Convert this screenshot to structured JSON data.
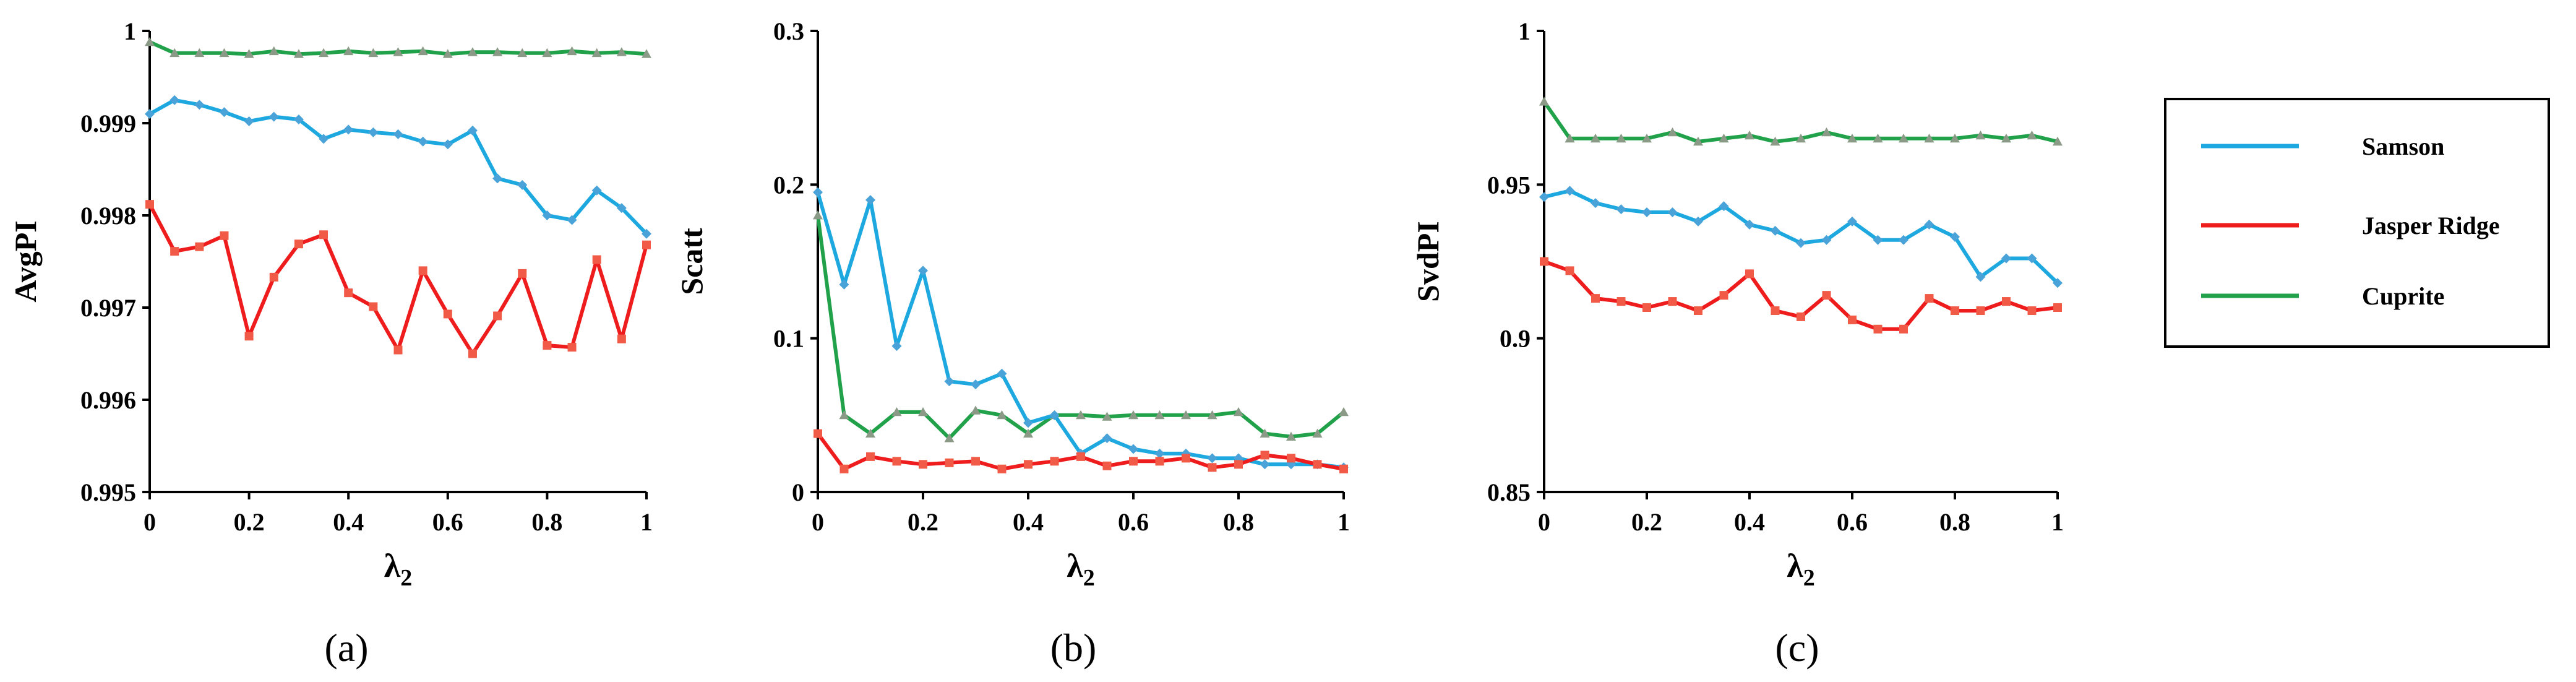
{
  "chart_data": [
    {
      "type": "line",
      "panel": "a",
      "caption": "(a)",
      "ylabel": "AvgPI",
      "xlabel": "λ",
      "xlabel_sub": "2",
      "xlim": [
        0,
        1
      ],
      "ylim": [
        0.995,
        1
      ],
      "xticks": [
        0,
        0.2,
        0.4,
        0.6,
        0.8,
        1
      ],
      "xtick_labels": [
        "0",
        "0.2",
        "0.4",
        "0.6",
        "0.8",
        "1"
      ],
      "yticks": [
        0.995,
        0.996,
        0.997,
        0.998,
        0.999,
        1
      ],
      "ytick_labels": [
        "0.995",
        "0.996",
        "0.997",
        "0.998",
        "0.999",
        "1"
      ],
      "x": [
        0,
        0.05,
        0.1,
        0.15,
        0.2,
        0.25,
        0.3,
        0.35,
        0.4,
        0.45,
        0.5,
        0.55,
        0.6,
        0.65,
        0.7,
        0.75,
        0.8,
        0.85,
        0.9,
        0.95,
        1
      ],
      "series": [
        {
          "name": "Samson",
          "values": [
            0.9991,
            0.99925,
            0.9992,
            0.99912,
            0.99902,
            0.99907,
            0.99904,
            0.99883,
            0.99893,
            0.9989,
            0.99888,
            0.9988,
            0.99877,
            0.99892,
            0.9984,
            0.99833,
            0.998,
            0.99795,
            0.99827,
            0.99808,
            0.9978
          ]
        },
        {
          "name": "Jasper Ridge",
          "values": [
            0.99812,
            0.99761,
            0.99766,
            0.99778,
            0.99669,
            0.99733,
            0.99769,
            0.99779,
            0.99716,
            0.99701,
            0.99654,
            0.9974,
            0.99693,
            0.9965,
            0.99691,
            0.99737,
            0.99659,
            0.99657,
            0.99752,
            0.99666,
            0.99768
          ]
        },
        {
          "name": "Cuprite",
          "values": [
            0.99988,
            0.99976,
            0.99976,
            0.99976,
            0.99975,
            0.99978,
            0.99975,
            0.99976,
            0.99978,
            0.99976,
            0.99977,
            0.99978,
            0.99975,
            0.99977,
            0.99977,
            0.99976,
            0.99976,
            0.99978,
            0.99976,
            0.99977,
            0.99975
          ]
        }
      ]
    },
    {
      "type": "line",
      "panel": "b",
      "caption": "(b)",
      "ylabel": "Scatt",
      "xlabel": "λ",
      "xlabel_sub": "2",
      "xlim": [
        0,
        1
      ],
      "ylim": [
        0,
        0.3
      ],
      "xticks": [
        0,
        0.2,
        0.4,
        0.6,
        0.8,
        1
      ],
      "xtick_labels": [
        "0",
        "0.2",
        "0.4",
        "0.6",
        "0.8",
        "1"
      ],
      "yticks": [
        0,
        0.1,
        0.2,
        0.3
      ],
      "ytick_labels": [
        "0",
        "0.1",
        "0.2",
        "0.3"
      ],
      "x": [
        0,
        0.05,
        0.1,
        0.15,
        0.2,
        0.25,
        0.3,
        0.35,
        0.4,
        0.45,
        0.5,
        0.55,
        0.6,
        0.65,
        0.7,
        0.75,
        0.8,
        0.85,
        0.9,
        0.95,
        1
      ],
      "series": [
        {
          "name": "Samson",
          "values": [
            0.195,
            0.135,
            0.19,
            0.095,
            0.144,
            0.072,
            0.07,
            0.077,
            0.045,
            0.05,
            0.025,
            0.035,
            0.028,
            0.025,
            0.025,
            0.022,
            0.022,
            0.018,
            0.018,
            0.018,
            0.016
          ]
        },
        {
          "name": "Jasper Ridge",
          "values": [
            0.038,
            0.015,
            0.023,
            0.02,
            0.018,
            0.019,
            0.02,
            0.015,
            0.018,
            0.02,
            0.023,
            0.017,
            0.02,
            0.02,
            0.022,
            0.016,
            0.018,
            0.024,
            0.022,
            0.018,
            0.015
          ]
        },
        {
          "name": "Cuprite",
          "values": [
            0.18,
            0.05,
            0.038,
            0.052,
            0.052,
            0.035,
            0.053,
            0.05,
            0.038,
            0.05,
            0.05,
            0.049,
            0.05,
            0.05,
            0.05,
            0.05,
            0.052,
            0.038,
            0.036,
            0.038,
            0.052
          ]
        }
      ]
    },
    {
      "type": "line",
      "panel": "c",
      "caption": "(c)",
      "ylabel": "SvdPI",
      "xlabel": "λ",
      "xlabel_sub": "2",
      "xlim": [
        0,
        1
      ],
      "ylim": [
        0.85,
        1
      ],
      "xticks": [
        0,
        0.2,
        0.4,
        0.6,
        0.8,
        1
      ],
      "xtick_labels": [
        "0",
        "0.2",
        "0.4",
        "0.6",
        "0.8",
        "1"
      ],
      "yticks": [
        0.85,
        0.9,
        0.95,
        1
      ],
      "ytick_labels": [
        "0.85",
        "0.9",
        "0.95",
        "1"
      ],
      "x": [
        0,
        0.05,
        0.1,
        0.15,
        0.2,
        0.25,
        0.3,
        0.35,
        0.4,
        0.45,
        0.5,
        0.55,
        0.6,
        0.65,
        0.7,
        0.75,
        0.8,
        0.85,
        0.9,
        0.95,
        1
      ],
      "series": [
        {
          "name": "Samson",
          "values": [
            0.946,
            0.948,
            0.944,
            0.942,
            0.941,
            0.941,
            0.938,
            0.943,
            0.937,
            0.935,
            0.931,
            0.932,
            0.938,
            0.932,
            0.932,
            0.937,
            0.933,
            0.92,
            0.926,
            0.926,
            0.918
          ]
        },
        {
          "name": "Jasper Ridge",
          "values": [
            0.925,
            0.922,
            0.913,
            0.912,
            0.91,
            0.912,
            0.909,
            0.914,
            0.921,
            0.909,
            0.907,
            0.914,
            0.906,
            0.903,
            0.903,
            0.913,
            0.909,
            0.909,
            0.912,
            0.909,
            0.91
          ]
        },
        {
          "name": "Cuprite",
          "values": [
            0.977,
            0.965,
            0.965,
            0.965,
            0.965,
            0.967,
            0.964,
            0.965,
            0.966,
            0.964,
            0.965,
            0.967,
            0.965,
            0.965,
            0.965,
            0.965,
            0.965,
            0.966,
            0.965,
            0.966,
            0.964
          ]
        }
      ]
    }
  ],
  "legend": {
    "position": "right",
    "items": [
      {
        "name": "Samson",
        "color": "#1ea8e0"
      },
      {
        "name": "Jasper Ridge",
        "color": "#ee1c1c"
      },
      {
        "name": "Cuprite",
        "color": "#21a24a"
      }
    ]
  },
  "colors": {
    "samson_marker": "#4aa3d8",
    "jasper_marker": "#f05a46",
    "cuprite_marker": "#8a9a86"
  }
}
